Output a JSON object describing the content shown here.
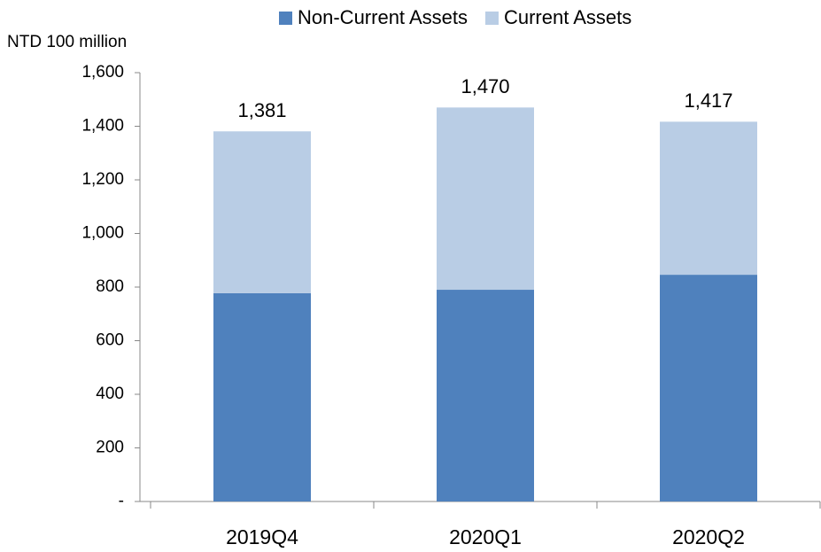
{
  "chart_data": {
    "type": "stacked_bar",
    "y_axis_label": "NTD 100 million",
    "categories": [
      "2019Q4",
      "2020Q1",
      "2020Q2"
    ],
    "series": [
      {
        "name": "Non-Current Assets",
        "color": "#4f81bd",
        "values": [
          777,
          790,
          846
        ]
      },
      {
        "name": "Current Assets",
        "color": "#b9cde5",
        "values": [
          604,
          680,
          571
        ]
      }
    ],
    "totals": [
      1381,
      1470,
      1417
    ],
    "total_labels": [
      "1,381",
      "1,470",
      "1,417"
    ],
    "ylim": [
      0,
      1600
    ],
    "yticks": [
      {
        "value": 0,
        "label": "-"
      },
      200,
      400,
      600,
      800,
      {
        "value": 1000,
        "label": "1,000"
      },
      {
        "value": 1200,
        "label": "1,200"
      },
      {
        "value": 1400,
        "label": "1,400"
      },
      {
        "value": 1600,
        "label": "1,600"
      }
    ],
    "legend": "top"
  }
}
